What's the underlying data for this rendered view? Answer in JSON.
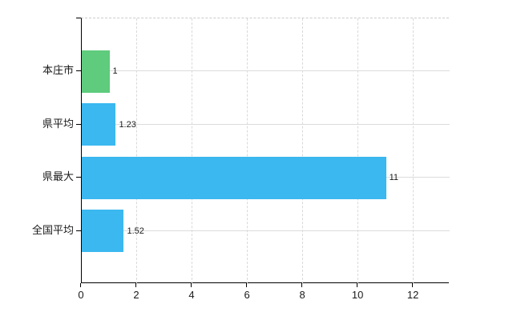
{
  "chart_data": {
    "type": "bar",
    "orientation": "horizontal",
    "title": "",
    "xlabel": "",
    "ylabel": "",
    "categories": [
      "本庄市",
      "県平均",
      "県最大",
      "全国平均"
    ],
    "values": [
      1,
      1.23,
      11,
      1.52
    ],
    "value_labels": [
      "1",
      "1.23",
      "11",
      "1.52"
    ],
    "bar_colors": [
      "#5ecb7d",
      "#3bb8f0",
      "#3bb8f0",
      "#3bb8f0"
    ],
    "x_tick_values": [
      0,
      2,
      4,
      6,
      8,
      10,
      12
    ],
    "x_tick_labels": [
      "0",
      "2",
      "4",
      "6",
      "8",
      "10",
      "12"
    ],
    "xlim": [
      0,
      13.3
    ],
    "grid": true,
    "legend_position": "none",
    "colors": {
      "axis": "#000000",
      "grid_vertical": "#d9d9d9",
      "grid_horizontal": "#dcdcdc",
      "plot_top_border": "#cccccc",
      "text": "#1a1a1a",
      "background": "#ffffff",
      "highlight_bar": "#5ecb7d",
      "default_bar": "#3bb8f0"
    }
  }
}
